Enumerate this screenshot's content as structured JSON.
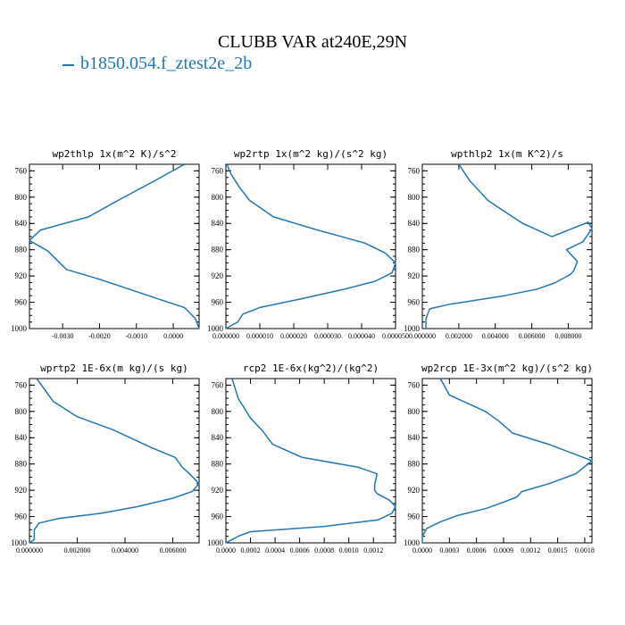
{
  "title": "CLUBB VAR at240E,29N",
  "legend": {
    "label": "b1850.054.f_ztest2e_2b",
    "color": "#1f77b4"
  },
  "chart_data": [
    {
      "type": "line",
      "title": "wp2thlp  1x(m^2 K)/s^2",
      "xlim": [
        -0.0039,
        0.0007
      ],
      "ylim": [
        1000,
        750
      ],
      "yticks": [
        760,
        800,
        840,
        880,
        920,
        960,
        1000
      ],
      "xticks": [
        -0.003,
        -0.002,
        -0.001,
        0.0
      ],
      "xtick_labels": [
        "-0.0030",
        "-0.0020",
        "-0.0010",
        "0.0000"
      ],
      "series": [
        {
          "color": "#1f77b4",
          "x": [
            0.0003,
            -0.0005,
            -0.0015,
            -0.0023,
            -0.0036,
            -0.0039,
            -0.0034,
            -0.0029,
            -0.002,
            -0.0012,
            -0.0004,
            0.0003,
            0.0006,
            0.0007
          ],
          "y": [
            750,
            775,
            805,
            830,
            850,
            866,
            882,
            910,
            925,
            940,
            955,
            968,
            985,
            1000
          ]
        }
      ]
    },
    {
      "type": "line",
      "title": "wp2rtp  1x(m^2 kg)/(s^2 kg)",
      "xlim": [
        0.0,
        5e-05
      ],
      "ylim": [
        1000,
        750
      ],
      "yticks": [
        760,
        800,
        840,
        880,
        920,
        960,
        1000
      ],
      "xticks": [
        0.0,
        1e-05,
        2e-05,
        3e-05,
        4e-05,
        5e-05
      ],
      "xtick_labels": [
        "0.000000",
        "0.000010",
        "0.000020",
        "0.000030",
        "0.000040",
        "0.000050"
      ],
      "series": [
        {
          "color": "#1f77b4",
          "x": [
            3e-07,
            1.5e-06,
            4e-06,
            7e-06,
            1.4e-05,
            2.7e-05,
            4.1e-05,
            4.7e-05,
            5e-05,
            4.9e-05,
            4.4e-05,
            3.5e-05,
            2.2e-05,
            1e-05,
            5e-06,
            3.5e-06,
            0.0
          ],
          "y": [
            750,
            765,
            785,
            805,
            830,
            850,
            870,
            885,
            900,
            915,
            928,
            940,
            955,
            968,
            978,
            990,
            1000
          ]
        }
      ]
    },
    {
      "type": "line",
      "title": "wpthlp2  1x(m K^2)/s",
      "xlim": [
        0.0,
        0.0093
      ],
      "ylim": [
        1000,
        750
      ],
      "yticks": [
        760,
        800,
        840,
        880,
        920,
        960,
        1000
      ],
      "xticks": [
        0.0,
        0.002,
        0.004,
        0.006,
        0.008
      ],
      "xtick_labels": [
        "0.000000",
        "0.002000",
        "0.004000",
        "0.006000",
        "0.008000"
      ],
      "series": [
        {
          "color": "#1f77b4",
          "x": [
            0.002,
            0.0026,
            0.0036,
            0.0044,
            0.0055,
            0.0071,
            0.0091,
            0.0093,
            0.0088,
            0.0079,
            0.0085,
            0.0083,
            0.0081,
            0.0073,
            0.0063,
            0.0045,
            0.0015,
            0.0004,
            0.0002,
            0.0002
          ],
          "y": [
            750,
            775,
            805,
            820,
            840,
            860,
            838,
            848,
            868,
            880,
            898,
            912,
            918,
            930,
            940,
            950,
            963,
            970,
            985,
            1000
          ]
        }
      ]
    },
    {
      "type": "line",
      "title": "wprtp2  1E-6x(m kg)/(s kg)",
      "xlim": [
        0.0,
        0.0071
      ],
      "ylim": [
        1000,
        750
      ],
      "yticks": [
        760,
        800,
        840,
        880,
        920,
        960,
        1000
      ],
      "xticks": [
        0.0,
        0.002,
        0.004,
        0.006
      ],
      "xtick_labels": [
        "0.000000",
        "0.002000",
        "0.004000",
        "0.006000"
      ],
      "series": [
        {
          "color": "#1f77b4",
          "x": [
            0.0003,
            0.0006,
            0.001,
            0.002,
            0.0035,
            0.0051,
            0.0061,
            0.0064,
            0.0067,
            0.0071,
            0.0068,
            0.006,
            0.0045,
            0.003,
            0.0012,
            0.0004,
            0.0002,
            0.0002,
            0.0002,
            0.0
          ],
          "y": [
            750,
            765,
            785,
            808,
            828,
            855,
            870,
            885,
            895,
            910,
            922,
            932,
            945,
            955,
            963,
            970,
            980,
            990,
            995,
            1000
          ]
        }
      ]
    },
    {
      "type": "line",
      "title": "rcp2  1E-6x(kg^2)/(kg^2)",
      "xlim": [
        0.0,
        0.00138
      ],
      "ylim": [
        1000,
        750
      ],
      "yticks": [
        760,
        800,
        840,
        880,
        920,
        960,
        1000
      ],
      "xticks": [
        0.0,
        0.0002,
        0.0004,
        0.0006,
        0.0008,
        0.001,
        0.0012
      ],
      "xtick_labels": [
        "0.0000",
        "0.0002",
        "0.0004",
        "0.0006",
        "0.0008",
        "0.0010",
        "0.0012"
      ],
      "series": [
        {
          "color": "#1f77b4",
          "x": [
            5e-05,
            0.0001,
            0.0002,
            0.0003,
            0.00038,
            0.00062,
            0.00108,
            0.00123,
            0.00121,
            0.00121,
            0.00123,
            0.00133,
            0.00138,
            0.00135,
            0.00124,
            0.0008,
            0.0002,
            0.0001,
            5e-05,
            0.0
          ],
          "y": [
            750,
            780,
            810,
            830,
            850,
            870,
            885,
            895,
            912,
            920,
            925,
            935,
            945,
            955,
            965,
            975,
            983,
            990,
            995,
            1000
          ]
        }
      ]
    },
    {
      "type": "line",
      "title": "wp2rcp  1E-3x(m^2 kg)/(s^2 kg)",
      "xlim": [
        0.0,
        0.00188
      ],
      "ylim": [
        1000,
        750
      ],
      "yticks": [
        760,
        800,
        840,
        880,
        920,
        960,
        1000
      ],
      "xticks": [
        0.0,
        0.0003,
        0.0006,
        0.0009,
        0.0012,
        0.0015,
        0.0018
      ],
      "xtick_labels": [
        "0.0000",
        "0.0003",
        "0.0006",
        "0.0009",
        "0.0012",
        "0.0015",
        "0.0018"
      ],
      "series": [
        {
          "color": "#1f77b4",
          "x": [
            0.0002,
            0.0003,
            0.0007,
            0.00085,
            0.001,
            0.0014,
            0.00188,
            0.0017,
            0.0014,
            0.0011,
            0.00105,
            0.0009,
            0.0007,
            0.0004,
            0.0002,
            5e-05,
            0.0,
            0.0
          ],
          "y": [
            750,
            775,
            800,
            815,
            833,
            850,
            875,
            895,
            910,
            922,
            930,
            938,
            948,
            958,
            968,
            978,
            990,
            1000
          ]
        }
      ]
    }
  ]
}
